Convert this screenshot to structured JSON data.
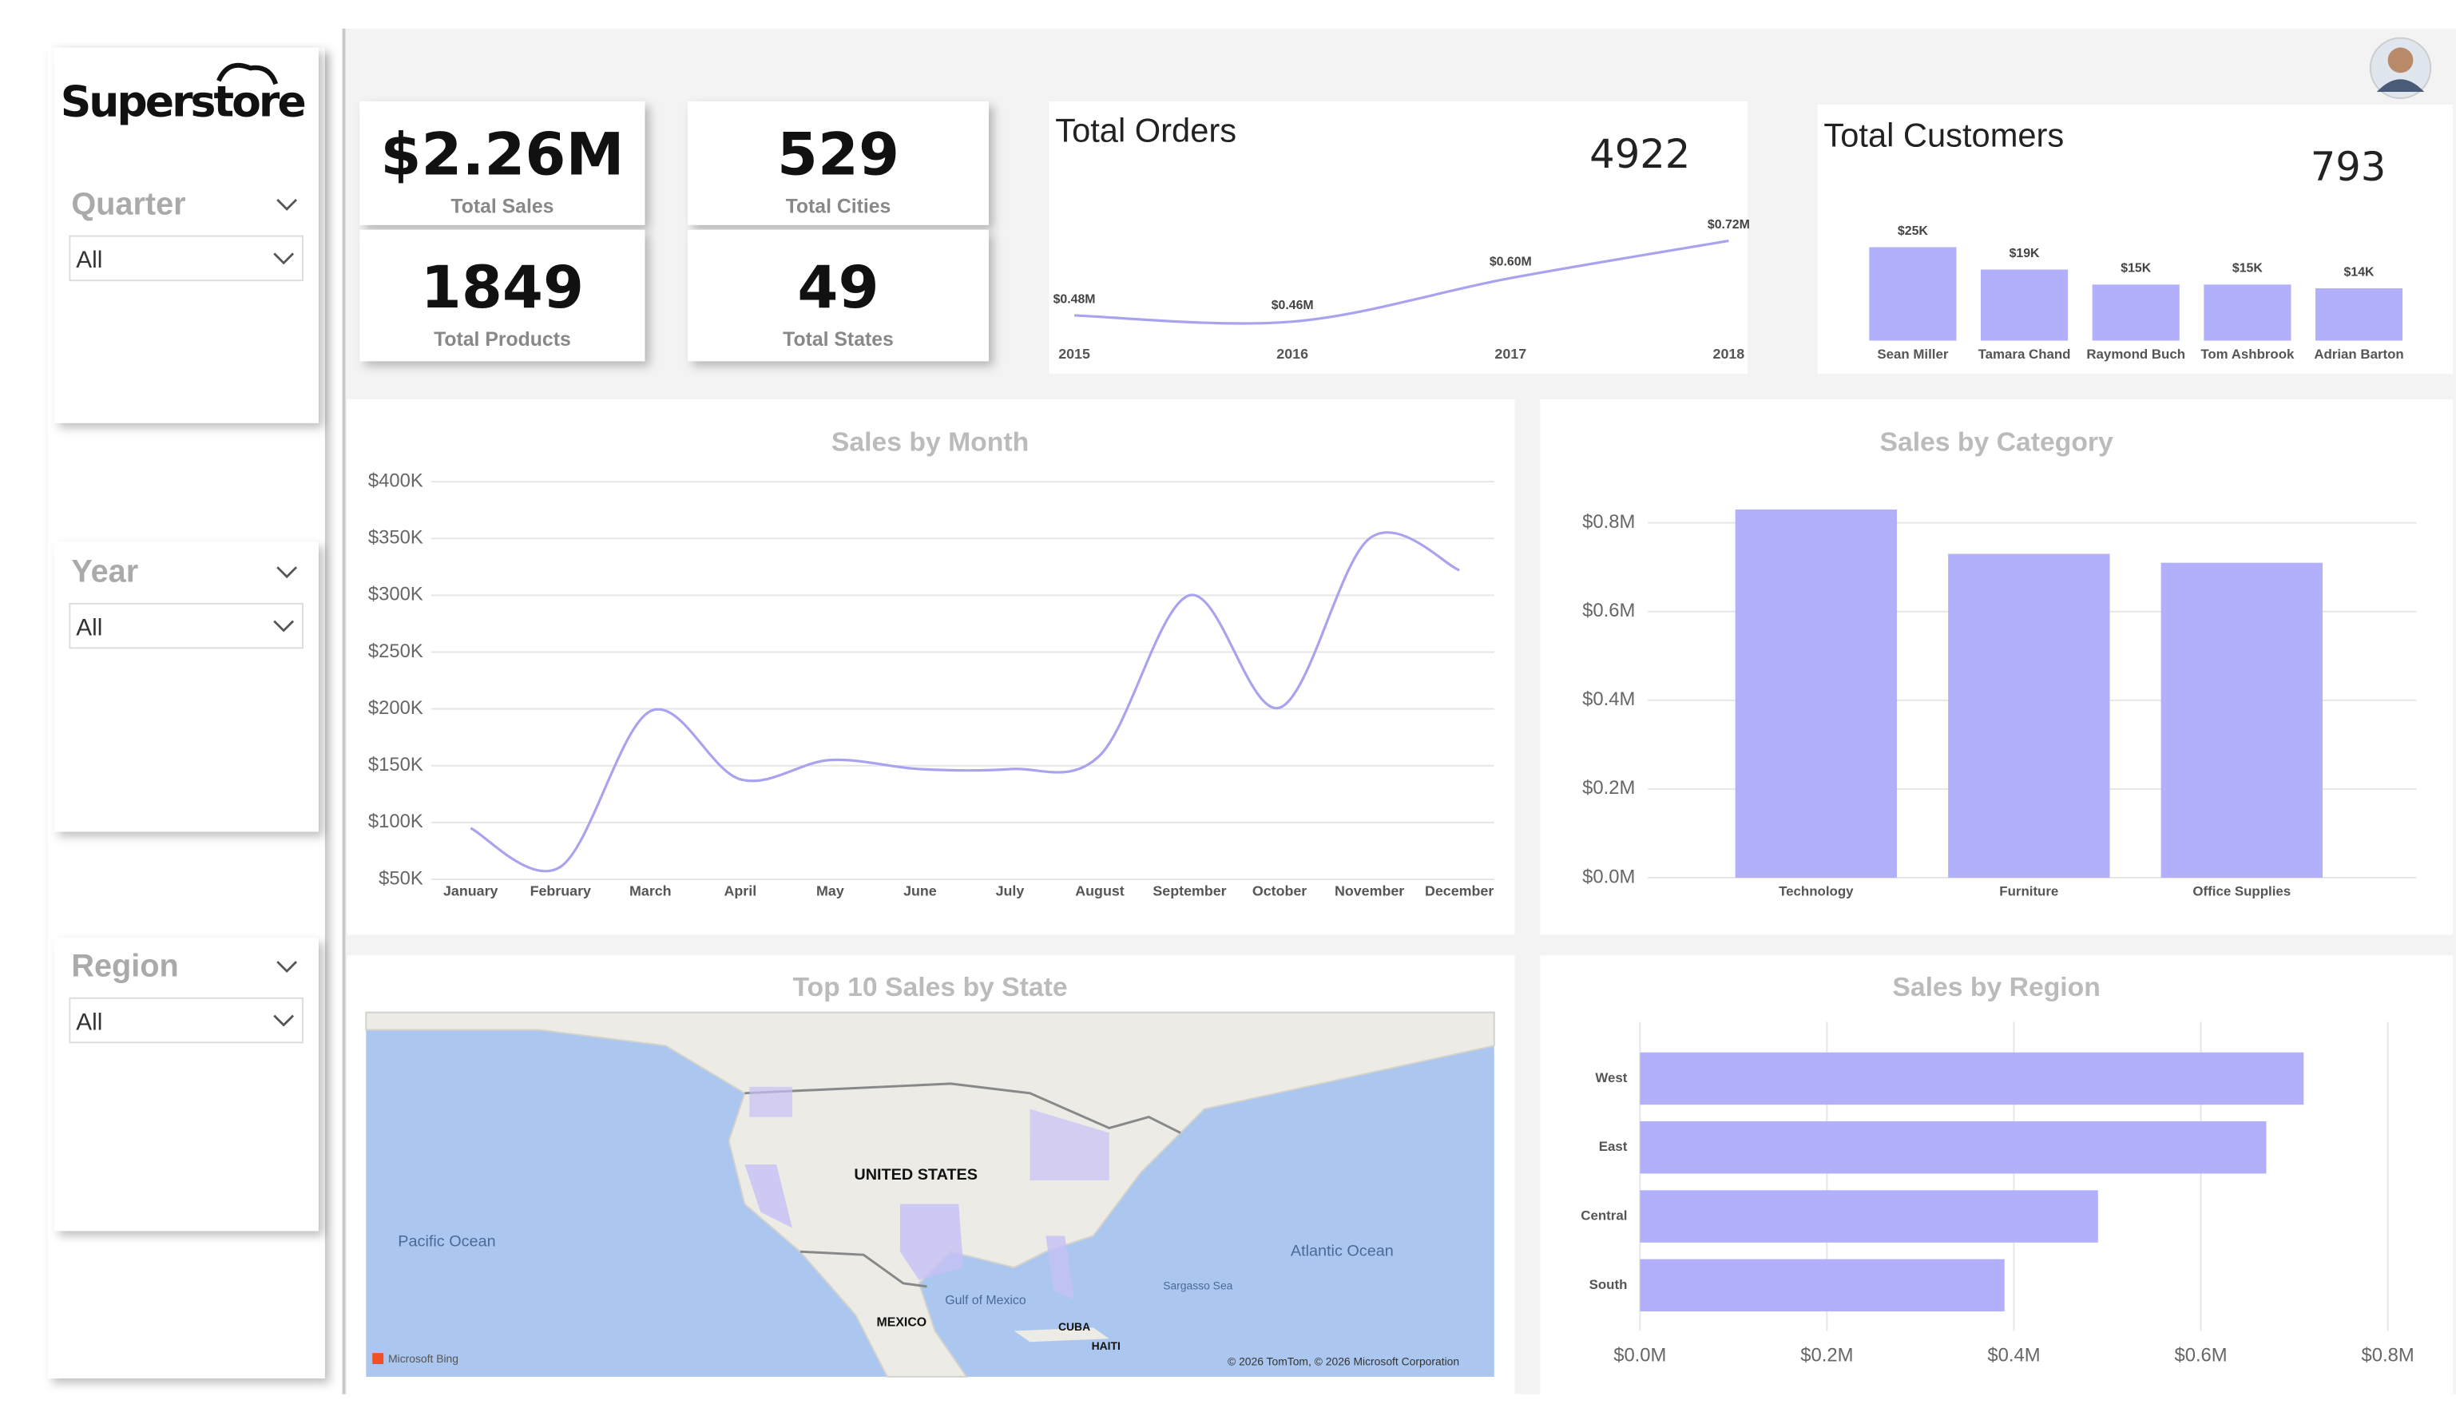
{
  "logo": "Superstore",
  "filters": [
    {
      "label": "Quarter",
      "value": "All"
    },
    {
      "label": "Year",
      "value": "All"
    },
    {
      "label": "Region",
      "value": "All"
    }
  ],
  "kpis": [
    {
      "value": "$2.26M",
      "label": "Total Sales"
    },
    {
      "value": "529",
      "label": "Total Cities"
    },
    {
      "value": "1849",
      "label": "Total Products"
    },
    {
      "value": "49",
      "label": "Total States"
    }
  ],
  "chart_data": [
    {
      "type": "line",
      "title": "Total Orders",
      "total": 4922,
      "categories": [
        "2015",
        "2016",
        "2017",
        "2018"
      ],
      "values": [
        0.48,
        0.46,
        0.6,
        0.72
      ],
      "value_labels": [
        "$0.48M",
        "$0.46M",
        "$0.60M",
        "$0.72M"
      ],
      "color": "#a9a3ef"
    },
    {
      "type": "bar",
      "title": "Total Customers",
      "total": 793,
      "categories": [
        "Sean Miller",
        "Tamara Chand",
        "Raymond Buch",
        "Tom Ashbrook",
        "Adrian Barton"
      ],
      "values": [
        25,
        19,
        15,
        15,
        14
      ],
      "value_labels": [
        "$25K",
        "$19K",
        "$15K",
        "$15K",
        "$14K"
      ],
      "color": "#b3b0fb"
    },
    {
      "type": "line",
      "title": "Sales by Month",
      "categories": [
        "January",
        "February",
        "March",
        "April",
        "May",
        "June",
        "July",
        "August",
        "September",
        "October",
        "November",
        "December"
      ],
      "values": [
        95,
        61,
        198,
        138,
        155,
        147,
        147,
        159,
        300,
        201,
        350,
        322
      ],
      "color": "#a9a3ef",
      "ylim": [
        50,
        400
      ],
      "yticks": [
        {
          "value": 50,
          "label": "$50K"
        },
        {
          "value": 100,
          "label": "$100K"
        },
        {
          "value": 150,
          "label": "$150K"
        },
        {
          "value": 200,
          "label": "$200K"
        },
        {
          "value": 250,
          "label": "$250K"
        },
        {
          "value": 300,
          "label": "$300K"
        },
        {
          "value": 350,
          "label": "$350K"
        },
        {
          "value": 400,
          "label": "$400K"
        }
      ],
      "grid": true
    },
    {
      "type": "bar",
      "title": "Sales by Category",
      "categories": [
        "Technology",
        "Furniture",
        "Office Supplies"
      ],
      "values": [
        0.83,
        0.73,
        0.71
      ],
      "color": "#b3b0fb",
      "ylim": [
        0,
        0.8
      ],
      "yticks": [
        {
          "value": 0,
          "label": "$0.0M"
        },
        {
          "value": 0.2,
          "label": "$0.2M"
        },
        {
          "value": 0.4,
          "label": "$0.4M"
        },
        {
          "value": 0.6,
          "label": "$0.6M"
        },
        {
          "value": 0.8,
          "label": "$0.8M"
        }
      ],
      "grid": true
    },
    {
      "type": "hbar",
      "title": "Sales by Region",
      "categories": [
        "West",
        "East",
        "Central",
        "South"
      ],
      "values": [
        0.71,
        0.67,
        0.49,
        0.39
      ],
      "color": "#b3b0fb",
      "xlim": [
        0,
        0.8
      ],
      "xticks": [
        {
          "value": 0,
          "label": "$0.0M"
        },
        {
          "value": 0.2,
          "label": "$0.2M"
        },
        {
          "value": 0.4,
          "label": "$0.4M"
        },
        {
          "value": 0.6,
          "label": "$0.6M"
        },
        {
          "value": 0.8,
          "label": "$0.8M"
        }
      ],
      "grid": true
    }
  ],
  "map": {
    "title": "Top 10 Sales by State",
    "labels": [
      "UNITED STATES",
      "Pacific Ocean",
      "Atlantic Ocean",
      "Gulf of Mexico",
      "MEXICO",
      "CUBA",
      "HAITI",
      "Sargasso Sea"
    ],
    "provider": "Microsoft Bing",
    "credits": "© 2026 TomTom, © 2026 Microsoft Corporation"
  }
}
